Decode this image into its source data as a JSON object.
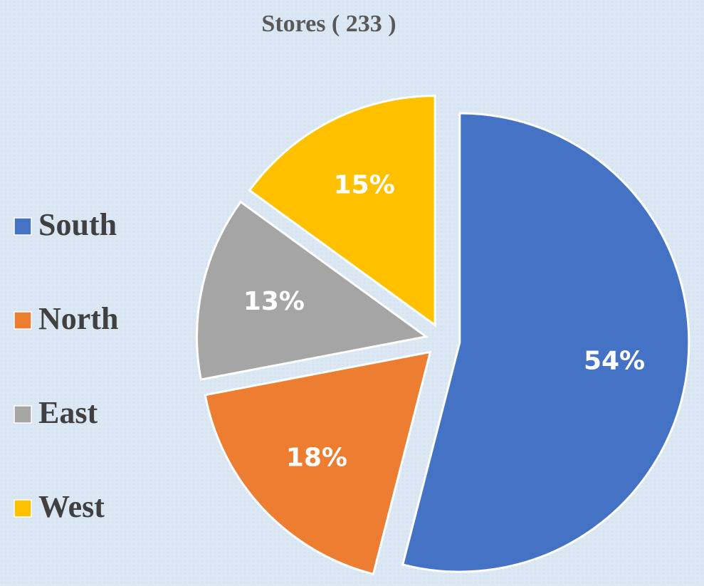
{
  "chart_data": {
    "type": "pie",
    "title": "Stores ( 233 )",
    "categories": [
      "South",
      "North",
      "East",
      "West"
    ],
    "values": [
      54,
      18,
      13,
      15
    ],
    "value_labels": [
      "54%",
      "18%",
      "13%",
      "15%"
    ],
    "colors": [
      "#4472c4",
      "#ed7d31",
      "#a5a5a5",
      "#ffc000"
    ],
    "legend": "left"
  }
}
